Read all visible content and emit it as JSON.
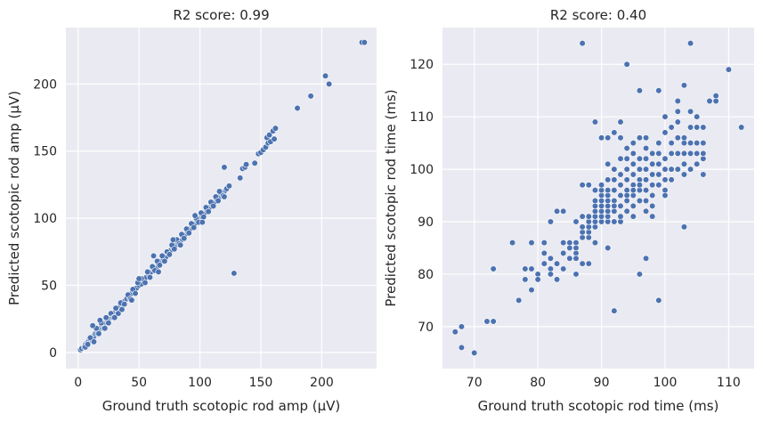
{
  "chart_data": [
    {
      "type": "scatter",
      "title": "R2 score: 0.99",
      "xlabel": "Ground truth scotopic rod amp (µV)",
      "ylabel": "Predicted scotopic rod amp (µV)",
      "xlim": [
        -10,
        245
      ],
      "ylim": [
        -12,
        242
      ],
      "xticks": [
        0,
        50,
        100,
        150,
        200
      ],
      "yticks": [
        0,
        50,
        100,
        150,
        200
      ],
      "grid": true,
      "marker_color": "#4c72b0",
      "points": [
        [
          2,
          2
        ],
        [
          3,
          3
        ],
        [
          5,
          4
        ],
        [
          6,
          6
        ],
        [
          7,
          7
        ],
        [
          8,
          8
        ],
        [
          9,
          9
        ],
        [
          10,
          9
        ],
        [
          11,
          10
        ],
        [
          12,
          12
        ],
        [
          13,
          12
        ],
        [
          14,
          14
        ],
        [
          15,
          15
        ],
        [
          16,
          16
        ],
        [
          17,
          16
        ],
        [
          18,
          18
        ],
        [
          19,
          19
        ],
        [
          20,
          20
        ],
        [
          21,
          20
        ],
        [
          22,
          22
        ],
        [
          23,
          23
        ],
        [
          24,
          24
        ],
        [
          25,
          24
        ],
        [
          26,
          26
        ],
        [
          27,
          27
        ],
        [
          28,
          28
        ],
        [
          29,
          28
        ],
        [
          30,
          30
        ],
        [
          31,
          31
        ],
        [
          32,
          32
        ],
        [
          33,
          33
        ],
        [
          34,
          34
        ],
        [
          35,
          34
        ],
        [
          36,
          36
        ],
        [
          37,
          37
        ],
        [
          38,
          38
        ],
        [
          40,
          40
        ],
        [
          42,
          41
        ],
        [
          44,
          44
        ],
        [
          46,
          46
        ],
        [
          48,
          48
        ],
        [
          50,
          50
        ],
        [
          52,
          51
        ],
        [
          54,
          54
        ],
        [
          56,
          56
        ],
        [
          58,
          58
        ],
        [
          60,
          60
        ],
        [
          62,
          62
        ],
        [
          64,
          63
        ],
        [
          66,
          66
        ],
        [
          68,
          68
        ],
        [
          70,
          70
        ],
        [
          72,
          71
        ],
        [
          74,
          74
        ],
        [
          76,
          76
        ],
        [
          78,
          78
        ],
        [
          80,
          80
        ],
        [
          82,
          82
        ],
        [
          84,
          83
        ],
        [
          86,
          86
        ],
        [
          88,
          88
        ],
        [
          90,
          90
        ],
        [
          92,
          92
        ],
        [
          94,
          94
        ],
        [
          96,
          96
        ],
        [
          98,
          98
        ],
        [
          100,
          100
        ],
        [
          102,
          101
        ],
        [
          104,
          104
        ],
        [
          106,
          106
        ],
        [
          108,
          108
        ],
        [
          110,
          110
        ],
        [
          112,
          112
        ],
        [
          114,
          114
        ],
        [
          116,
          116
        ],
        [
          118,
          118
        ],
        [
          120,
          120
        ],
        [
          122,
          122
        ],
        [
          124,
          124
        ],
        [
          6,
          4
        ],
        [
          8,
          6
        ],
        [
          10,
          11
        ],
        [
          13,
          8
        ],
        [
          15,
          18
        ],
        [
          17,
          14
        ],
        [
          19,
          22
        ],
        [
          21,
          18
        ],
        [
          23,
          26
        ],
        [
          25,
          22
        ],
        [
          27,
          29
        ],
        [
          29,
          26
        ],
        [
          31,
          33
        ],
        [
          33,
          29
        ],
        [
          35,
          37
        ],
        [
          38,
          36
        ],
        [
          41,
          43
        ],
        [
          43,
          40
        ],
        [
          45,
          47
        ],
        [
          47,
          44
        ],
        [
          49,
          52
        ],
        [
          52,
          55
        ],
        [
          55,
          52
        ],
        [
          57,
          60
        ],
        [
          59,
          56
        ],
        [
          61,
          64
        ],
        [
          63,
          61
        ],
        [
          65,
          68
        ],
        [
          67,
          65
        ],
        [
          69,
          72
        ],
        [
          71,
          68
        ],
        [
          73,
          75
        ],
        [
          75,
          73
        ],
        [
          77,
          80
        ],
        [
          79,
          77
        ],
        [
          81,
          84
        ],
        [
          83,
          81
        ],
        [
          85,
          88
        ],
        [
          87,
          85
        ],
        [
          89,
          92
        ],
        [
          91,
          89
        ],
        [
          93,
          96
        ],
        [
          95,
          93
        ],
        [
          97,
          100
        ],
        [
          99,
          97
        ],
        [
          101,
          104
        ],
        [
          103,
          101
        ],
        [
          105,
          108
        ],
        [
          107,
          105
        ],
        [
          109,
          112
        ],
        [
          111,
          109
        ],
        [
          113,
          116
        ],
        [
          115,
          113
        ],
        [
          117,
          120
        ],
        [
          119,
          117
        ],
        [
          12,
          20
        ],
        [
          18,
          24
        ],
        [
          22,
          18
        ],
        [
          30,
          26
        ],
        [
          36,
          32
        ],
        [
          44,
          39
        ],
        [
          50,
          55
        ],
        [
          62,
          72
        ],
        [
          66,
          60
        ],
        [
          78,
          84
        ],
        [
          84,
          80
        ],
        [
          96,
          102
        ],
        [
          102,
          97
        ],
        [
          116,
          120
        ],
        [
          120,
          116
        ],
        [
          128,
          59
        ],
        [
          120,
          138
        ],
        [
          133,
          130
        ],
        [
          135,
          137
        ],
        [
          137,
          138
        ],
        [
          138,
          140
        ],
        [
          145,
          141
        ],
        [
          148,
          148
        ],
        [
          150,
          149
        ],
        [
          152,
          151
        ],
        [
          154,
          153
        ],
        [
          155,
          160
        ],
        [
          156,
          156
        ],
        [
          157,
          162
        ],
        [
          158,
          157
        ],
        [
          160,
          165
        ],
        [
          161,
          159
        ],
        [
          162,
          167
        ],
        [
          180,
          182
        ],
        [
          191,
          191
        ],
        [
          203,
          206
        ],
        [
          206,
          200
        ],
        [
          233,
          231
        ],
        [
          235,
          231
        ]
      ]
    },
    {
      "type": "scatter",
      "title": "R2 score: 0.40",
      "xlabel": "Ground truth scotopic rod time (ms)",
      "ylabel": "Predicted scotopic rod time (ms)",
      "xlim": [
        65,
        114
      ],
      "ylim": [
        62,
        127
      ],
      "xticks": [
        70,
        80,
        90,
        100,
        110
      ],
      "yticks": [
        70,
        80,
        90,
        100,
        110,
        120
      ],
      "grid": true,
      "marker_color": "#4c72b0",
      "points": [
        [
          67,
          69
        ],
        [
          68,
          70
        ],
        [
          68,
          66
        ],
        [
          70,
          65
        ],
        [
          72,
          71
        ],
        [
          73,
          71
        ],
        [
          73,
          81
        ],
        [
          76,
          86
        ],
        [
          77,
          75
        ],
        [
          78,
          79
        ],
        [
          78,
          81
        ],
        [
          79,
          86
        ],
        [
          79,
          81
        ],
        [
          79,
          77
        ],
        [
          80,
          80
        ],
        [
          80,
          79
        ],
        [
          81,
          82
        ],
        [
          81,
          84
        ],
        [
          81,
          86
        ],
        [
          82,
          83
        ],
        [
          82,
          81
        ],
        [
          82,
          80
        ],
        [
          82,
          90
        ],
        [
          83,
          92
        ],
        [
          83,
          82
        ],
        [
          83,
          79
        ],
        [
          84,
          86
        ],
        [
          84,
          84
        ],
        [
          84,
          92
        ],
        [
          84,
          81
        ],
        [
          85,
          85
        ],
        [
          85,
          83
        ],
        [
          85,
          86
        ],
        [
          86,
          86
        ],
        [
          86,
          84
        ],
        [
          86,
          83
        ],
        [
          86,
          90
        ],
        [
          86,
          85
        ],
        [
          86,
          80
        ],
        [
          87,
          87
        ],
        [
          87,
          91
        ],
        [
          87,
          88
        ],
        [
          87,
          89
        ],
        [
          87,
          82
        ],
        [
          87,
          97
        ],
        [
          87,
          124
        ],
        [
          88,
          87
        ],
        [
          88,
          88
        ],
        [
          88,
          89
        ],
        [
          88,
          90
        ],
        [
          88,
          91
        ],
        [
          88,
          97
        ],
        [
          88,
          82
        ],
        [
          89,
          89
        ],
        [
          89,
          90
        ],
        [
          89,
          91
        ],
        [
          89,
          92
        ],
        [
          89,
          93
        ],
        [
          89,
          94
        ],
        [
          89,
          96
        ],
        [
          89,
          86
        ],
        [
          89,
          109
        ],
        [
          90,
          90
        ],
        [
          90,
          91
        ],
        [
          90,
          92
        ],
        [
          90,
          93
        ],
        [
          90,
          94
        ],
        [
          90,
          95
        ],
        [
          90,
          96
        ],
        [
          90,
          97
        ],
        [
          90,
          106
        ],
        [
          91,
          90
        ],
        [
          91,
          91
        ],
        [
          91,
          92
        ],
        [
          91,
          93
        ],
        [
          91,
          94
        ],
        [
          91,
          95
        ],
        [
          91,
          96
        ],
        [
          91,
          98
        ],
        [
          91,
          101
        ],
        [
          91,
          85
        ],
        [
          91,
          106
        ],
        [
          92,
          90
        ],
        [
          92,
          92
        ],
        [
          92,
          94
        ],
        [
          92,
          96
        ],
        [
          92,
          98
        ],
        [
          92,
          100
        ],
        [
          92,
          93
        ],
        [
          92,
          107
        ],
        [
          92,
          73
        ],
        [
          93,
          90
        ],
        [
          93,
          91
        ],
        [
          93,
          93
        ],
        [
          93,
          95
        ],
        [
          93,
          97
        ],
        [
          93,
          99
        ],
        [
          93,
          102
        ],
        [
          93,
          109
        ],
        [
          93,
          106
        ],
        [
          94,
          92
        ],
        [
          94,
          94
        ],
        [
          94,
          96
        ],
        [
          94,
          98
        ],
        [
          94,
          100
        ],
        [
          94,
          102
        ],
        [
          94,
          95
        ],
        [
          94,
          120
        ],
        [
          94,
          104
        ],
        [
          95,
          91
        ],
        [
          95,
          93
        ],
        [
          95,
          95
        ],
        [
          95,
          97
        ],
        [
          95,
          99
        ],
        [
          95,
          101
        ],
        [
          95,
          103
        ],
        [
          95,
          105
        ],
        [
          95,
          96
        ],
        [
          96,
          94
        ],
        [
          96,
          96
        ],
        [
          96,
          98
        ],
        [
          96,
          100
        ],
        [
          96,
          102
        ],
        [
          96,
          97
        ],
        [
          96,
          115
        ],
        [
          96,
          106
        ],
        [
          96,
          80
        ],
        [
          97,
          92
        ],
        [
          97,
          94
        ],
        [
          97,
          96
        ],
        [
          97,
          98
        ],
        [
          97,
          100
        ],
        [
          97,
          102
        ],
        [
          97,
          104
        ],
        [
          97,
          83
        ],
        [
          97,
          106
        ],
        [
          98,
          95
        ],
        [
          98,
          97
        ],
        [
          98,
          99
        ],
        [
          98,
          101
        ],
        [
          98,
          103
        ],
        [
          98,
          93
        ],
        [
          98,
          91
        ],
        [
          99,
          97
        ],
        [
          99,
          99
        ],
        [
          99,
          101
        ],
        [
          99,
          103
        ],
        [
          99,
          105
        ],
        [
          99,
          115
        ],
        [
          99,
          75
        ],
        [
          100,
          96
        ],
        [
          100,
          98
        ],
        [
          100,
          100
        ],
        [
          100,
          102
        ],
        [
          100,
          95
        ],
        [
          100,
          110
        ],
        [
          100,
          107
        ],
        [
          101,
          100
        ],
        [
          101,
          103
        ],
        [
          101,
          98
        ],
        [
          101,
          105
        ],
        [
          101,
          108
        ],
        [
          102,
          100
        ],
        [
          102,
          103
        ],
        [
          102,
          106
        ],
        [
          102,
          109
        ],
        [
          102,
          113
        ],
        [
          102,
          111
        ],
        [
          103,
          99
        ],
        [
          103,
          101
        ],
        [
          103,
          103
        ],
        [
          103,
          105
        ],
        [
          103,
          106
        ],
        [
          103,
          89
        ],
        [
          103,
          116
        ],
        [
          104,
          103
        ],
        [
          104,
          105
        ],
        [
          104,
          100
        ],
        [
          104,
          124
        ],
        [
          104,
          111
        ],
        [
          104,
          108
        ],
        [
          105,
          101
        ],
        [
          105,
          103
        ],
        [
          105,
          105
        ],
        [
          105,
          108
        ],
        [
          105,
          110
        ],
        [
          106,
          102
        ],
        [
          106,
          103
        ],
        [
          106,
          105
        ],
        [
          106,
          99
        ],
        [
          106,
          108
        ],
        [
          107,
          113
        ],
        [
          108,
          113
        ],
        [
          108,
          114
        ],
        [
          110,
          119
        ],
        [
          112,
          108
        ]
      ]
    }
  ]
}
